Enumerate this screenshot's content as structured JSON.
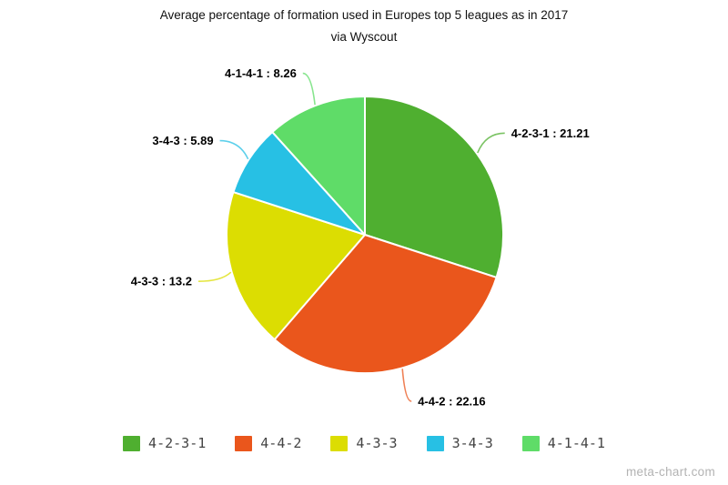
{
  "header": {
    "title": "Average percentage of formation used in Europes top 5 leagues as in 2017",
    "subtitle": "via Wyscout"
  },
  "watermark": "meta-chart.com",
  "chart_data": {
    "type": "pie",
    "title": "Average percentage of formation used in Europes top 5 leagues as in 2017",
    "subtitle": "via Wyscout",
    "values_are_percent": true,
    "start_angle": "12-o-clock",
    "direction": "clockwise",
    "legend_position": "bottom",
    "slices": [
      {
        "label": "4-2-3-1",
        "value": 21.21,
        "color": "#4faf30",
        "callout": "4-2-3-1 : 21.21"
      },
      {
        "label": "4-4-2",
        "value": 22.16,
        "color": "#ea561c",
        "callout": "4-4-2 : 22.16"
      },
      {
        "label": "4-3-3",
        "value": 13.2,
        "color": "#dcdd02",
        "callout": "4-3-3 : 13.2"
      },
      {
        "label": "3-4-3",
        "value": 5.89,
        "color": "#27c0e4",
        "callout": "3-4-3 : 5.89"
      },
      {
        "label": "4-1-4-1",
        "value": 8.26,
        "color": "#5fdc68",
        "callout": "4-1-4-1 : 8.26"
      }
    ]
  }
}
